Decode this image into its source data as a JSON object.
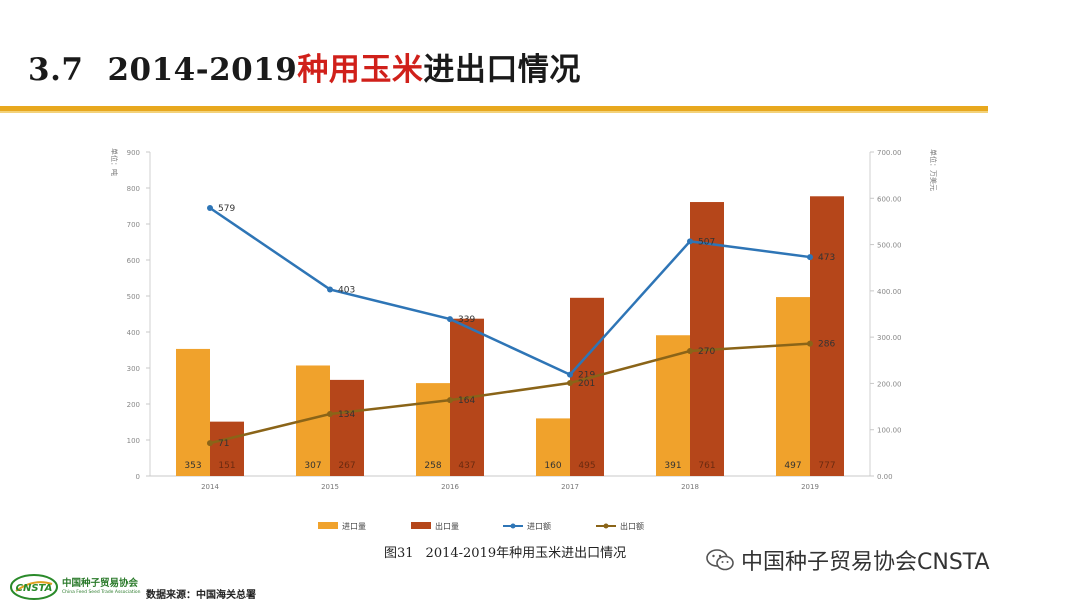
{
  "page": {
    "section_number": "3.7",
    "title_part1": "2014-2019",
    "title_highlight": "种用玉米",
    "title_part2": "进出口情况",
    "figure_number": "图31",
    "figure_caption": "2014-2019年种用玉米进出口情况",
    "watermark": "中国种子贸易协会CNSTA",
    "logo_cn": "中国种子贸易协会",
    "logo_en": "China Feed Seed Trade Association",
    "source": "数据来源：中国海关总署"
  },
  "colors": {
    "import_qty": "#f0a22c",
    "export_qty": "#b5461a",
    "import_val": "#2e75b6",
    "export_val": "#8a6418",
    "accent_rule": "#e8a81e",
    "title_highlight": "#d0201a"
  },
  "chart_data": {
    "type": "bar+line",
    "categories": [
      "2014",
      "2015",
      "2016",
      "2017",
      "2018",
      "2019"
    ],
    "left_axis": {
      "label": "单位：吨",
      "ylim": [
        0,
        900
      ],
      "ticks": [
        "0",
        "100",
        "200",
        "300",
        "400",
        "500",
        "600",
        "700",
        "800",
        "900"
      ]
    },
    "right_axis": {
      "label": "单位：万美元",
      "ylim": [
        0,
        700
      ],
      "ticks": [
        "0.00",
        "100.00",
        "200.00",
        "300.00",
        "400.00",
        "500.00",
        "600.00",
        "700.00"
      ]
    },
    "series": [
      {
        "name": "进口量",
        "type": "bar",
        "axis": "left",
        "values": [
          353,
          307,
          258,
          160,
          391,
          497
        ],
        "labels": [
          "353",
          "307",
          "258",
          "160",
          "391",
          "497"
        ]
      },
      {
        "name": "出口量",
        "type": "bar",
        "axis": "left",
        "values": [
          151,
          267,
          437,
          495,
          761,
          777
        ],
        "labels": [
          "151",
          "267",
          "437",
          "495",
          "761",
          "777"
        ]
      },
      {
        "name": "进口额",
        "type": "line",
        "axis": "right",
        "values": [
          579,
          403,
          339,
          219,
          507,
          473
        ],
        "labels": [
          "579",
          "403",
          "339",
          "219",
          "507",
          "473"
        ]
      },
      {
        "name": "出口额",
        "type": "line",
        "axis": "right",
        "values": [
          71,
          134,
          164,
          201,
          270,
          286
        ],
        "labels": [
          "71",
          "134",
          "164",
          "201",
          "270",
          "286"
        ]
      }
    ]
  }
}
